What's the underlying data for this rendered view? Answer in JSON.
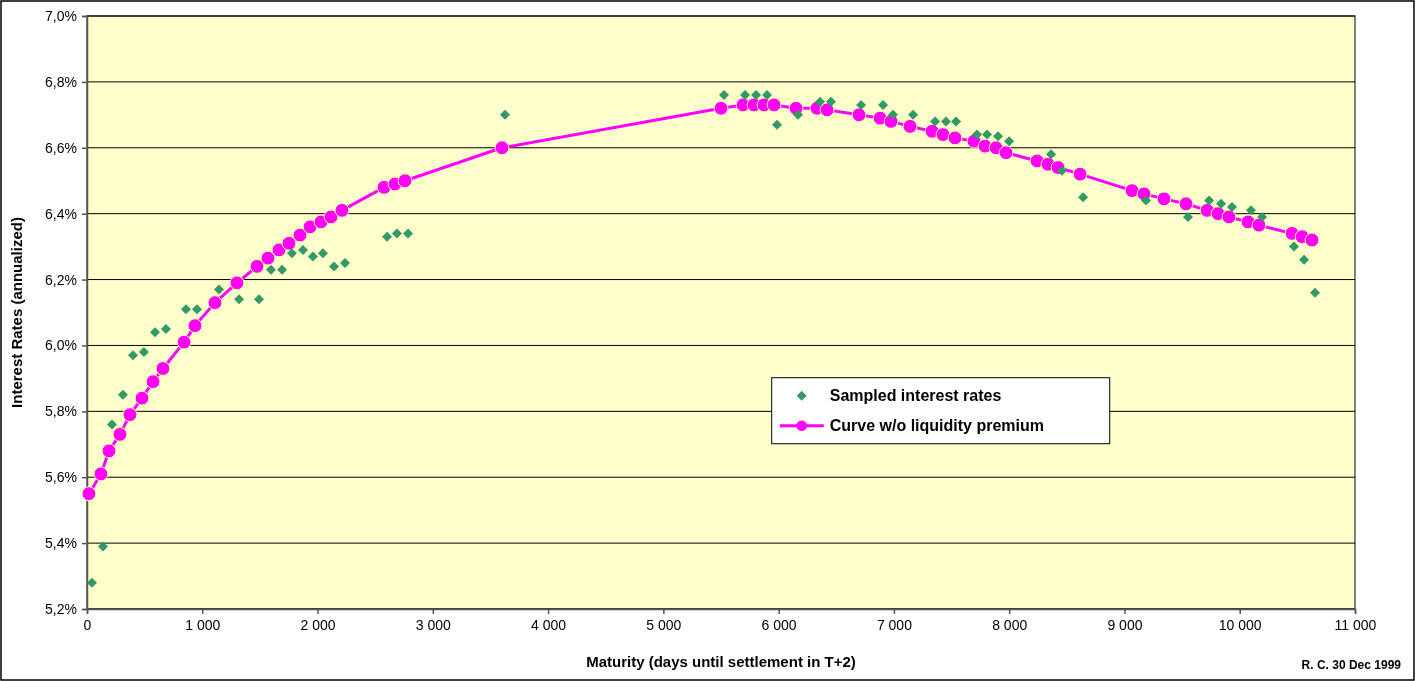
{
  "chart_data": {
    "type": "scatter",
    "xlabel": "Maturity (days until settlement in T+2)",
    "ylabel": "Interest Rates (annualized)",
    "xlim": [
      0,
      11000
    ],
    "ylim": [
      5.2,
      7.0
    ],
    "xticks": [
      0,
      {
        "value": 1000,
        "label": "1 000"
      },
      {
        "value": 2000,
        "label": "2 000"
      },
      {
        "value": 3000,
        "label": "3 000"
      },
      {
        "value": 4000,
        "label": "4 000"
      },
      {
        "value": 5000,
        "label": "5 000"
      },
      {
        "value": 6000,
        "label": "6 000"
      },
      {
        "value": 7000,
        "label": "7 000"
      },
      {
        "value": 8000,
        "label": "8 000"
      },
      {
        "value": 9000,
        "label": "9 000"
      },
      {
        "value": 10000,
        "label": "10 000"
      },
      {
        "value": 11000,
        "label": "11 000"
      }
    ],
    "yticks": [
      {
        "value": 5.2,
        "label": "5,2%"
      },
      {
        "value": 5.4,
        "label": "5,4%"
      },
      {
        "value": 5.6,
        "label": "5,6%"
      },
      {
        "value": 5.8,
        "label": "5,8%"
      },
      {
        "value": 6.0,
        "label": "6,0%"
      },
      {
        "value": 6.2,
        "label": "6,2%"
      },
      {
        "value": 6.4,
        "label": "6,4%"
      },
      {
        "value": 6.6,
        "label": "6,6%"
      },
      {
        "value": 6.8,
        "label": "6,8%"
      },
      {
        "value": 7.0,
        "label": "7,0%"
      }
    ],
    "grid": "y",
    "legend": "center right",
    "annotations": [
      "R. C.  30 Dec 1999"
    ],
    "series": [
      {
        "name": "Sampled interest rates",
        "marker": "diamond",
        "color": "#339966",
        "x": [
          43,
          139,
          217,
          312,
          399,
          494,
          590,
          685,
          859,
          954,
          1145,
          1319,
          1492,
          1596,
          1692,
          1778,
          1874,
          1960,
          2047,
          2143,
          2238,
          2603,
          2689,
          2785,
          3626,
          5526,
          5708,
          5804,
          5899,
          5986,
          6168,
          6359,
          6454,
          6715,
          6906,
          6992,
          7166,
          7357,
          7452,
          7539,
          7721,
          7808,
          7903,
          7999,
          8363,
          8458,
          8641,
          9187,
          9551,
          9734,
          9838,
          9933,
          10098,
          10194,
          10471,
          10558,
          10653
        ],
        "values": [
          5.28,
          5.39,
          5.76,
          5.85,
          5.97,
          5.98,
          6.04,
          6.05,
          6.11,
          6.11,
          6.17,
          6.14,
          6.14,
          6.23,
          6.23,
          6.28,
          6.29,
          6.27,
          6.28,
          6.24,
          6.25,
          6.33,
          6.34,
          6.34,
          6.7,
          6.76,
          6.76,
          6.76,
          6.76,
          6.67,
          6.7,
          6.74,
          6.74,
          6.73,
          6.73,
          6.7,
          6.7,
          6.68,
          6.68,
          6.68,
          6.64,
          6.64,
          6.635,
          6.62,
          6.58,
          6.53,
          6.45,
          6.44,
          6.39,
          6.44,
          6.43,
          6.42,
          6.41,
          6.39,
          6.3,
          6.26,
          6.16
        ]
      },
      {
        "name": "Curve w/o liquidity premium",
        "type": "line",
        "marker": "circle",
        "color": "#ff00ff",
        "x": [
          17,
          121,
          191,
          286,
          373,
          477,
          573,
          659,
          842,
          937,
          1110,
          1301,
          1475,
          1570,
          1666,
          1752,
          1848,
          1935,
          2030,
          2117,
          2212,
          2577,
          2672,
          2759,
          3600,
          5500,
          5691,
          5786,
          5873,
          5960,
          6151,
          6333,
          6420,
          6697,
          6880,
          6975,
          7140,
          7331,
          7426,
          7530,
          7695,
          7790,
          7886,
          7973,
          8242,
          8337,
          8424,
          8615,
          9066,
          9170,
          9343,
          9534,
          9717,
          9812,
          9907,
          10072,
          10167,
          10454,
          10541,
          10627
        ],
        "values": [
          5.55,
          5.61,
          5.68,
          5.73,
          5.79,
          5.84,
          5.89,
          5.93,
          6.01,
          6.06,
          6.13,
          6.19,
          6.24,
          6.265,
          6.29,
          6.31,
          6.335,
          6.36,
          6.375,
          6.39,
          6.41,
          6.48,
          6.49,
          6.5,
          6.6,
          6.72,
          6.73,
          6.73,
          6.73,
          6.73,
          6.72,
          6.72,
          6.715,
          6.7,
          6.69,
          6.68,
          6.665,
          6.65,
          6.64,
          6.63,
          6.62,
          6.605,
          6.6,
          6.585,
          6.56,
          6.55,
          6.54,
          6.52,
          6.47,
          6.46,
          6.445,
          6.43,
          6.41,
          6.4,
          6.39,
          6.375,
          6.365,
          6.34,
          6.33,
          6.32
        ]
      }
    ]
  }
}
